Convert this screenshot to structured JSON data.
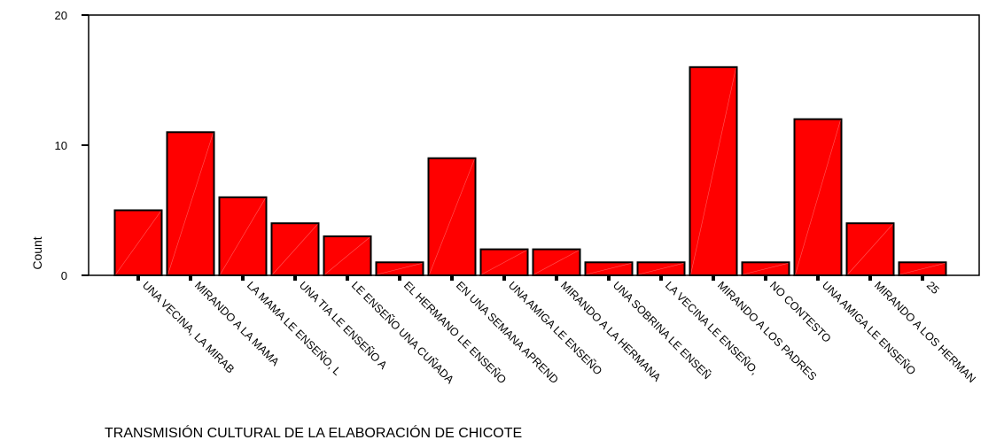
{
  "chart_data": {
    "type": "bar",
    "categories": [
      "UNA VECINA, LA MIRAB",
      "MIRANDO A LA MAMA",
      "LA MAMA LE ENSEÑO, L",
      "UNA TIA LE ENSEÑO A",
      "LE ENSEÑO UNA CUÑADA",
      "EL HERMANO LE ENSEÑO",
      "EN UNA SEMANA APREND",
      "UNA AMIGA LE ENSEÑO",
      "MIRANDO A LA HERMANA",
      "UNA SOBRINA LE ENSEÑ",
      "LA VECINA LE ENSEÑO,",
      "MIRANDO A LOS PADRES",
      "NO CONTESTO",
      "UNA AMIGA LE ENSEÑO",
      "MIRANDO A LOS HERMAN",
      "25"
    ],
    "values": [
      5,
      11,
      6,
      4,
      3,
      1,
      9,
      2,
      2,
      1,
      1,
      16,
      1,
      12,
      4,
      1
    ],
    "xlabel": "TRANSMISIÓN CULTURAL DE LA ELABORACIÓN DE CHICOTE",
    "ylabel": "Count",
    "ylim": [
      0,
      20
    ],
    "yticks": [
      0,
      10,
      20
    ],
    "grid": false,
    "bar_color": "#ff0000",
    "bar_edge_color": "#000000"
  }
}
